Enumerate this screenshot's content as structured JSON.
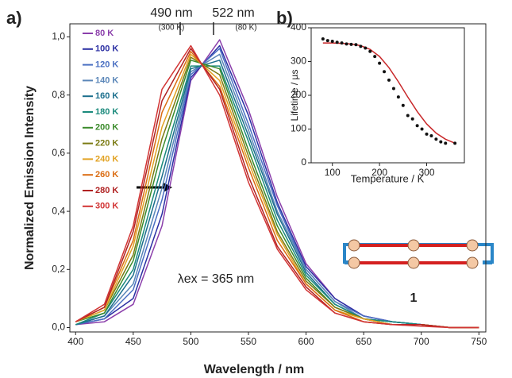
{
  "chart_data": [
    {
      "type": "line",
      "panel_label": "a)",
      "x_label": "Wavelength / nm",
      "y_label": "Normalized Emission  Intensity",
      "xlim": [
        395,
        756
      ],
      "ylim": [
        -0.015,
        1.045
      ],
      "xticks": [
        400,
        450,
        500,
        550,
        600,
        650,
        700,
        750
      ],
      "yticks": [
        {
          "value": 0,
          "label": "0,0"
        },
        {
          "value": 0.2,
          "label": "0,2"
        },
        {
          "value": 0.4,
          "label": "0,4"
        },
        {
          "value": 0.6,
          "label": "0,6"
        },
        {
          "value": 0.8,
          "label": "0,8"
        },
        {
          "value": 1.0,
          "label": "1,0"
        }
      ],
      "annotations": [
        "490 nm",
        "(300 K)",
        "522 nm",
        "(80 K)",
        "λex = 365 nm"
      ],
      "x": [
        400,
        425,
        450,
        475,
        500,
        525,
        550,
        575,
        600,
        625,
        650,
        675,
        700,
        725,
        750
      ],
      "series": [
        {
          "name": "80 K",
          "color": "#8b3fab",
          "values": [
            0.01,
            0.02,
            0.08,
            0.35,
            0.85,
            0.99,
            0.75,
            0.45,
            0.22,
            0.1,
            0.04,
            0.02,
            0.01,
            0,
            0
          ]
        },
        {
          "name": "100 K",
          "color": "#2b2fa3",
          "values": [
            0.01,
            0.03,
            0.1,
            0.39,
            0.86,
            0.97,
            0.73,
            0.43,
            0.21,
            0.1,
            0.04,
            0.02,
            0.01,
            0,
            0
          ]
        },
        {
          "name": "120 K",
          "color": "#4a6fc2",
          "values": [
            0.01,
            0.03,
            0.13,
            0.44,
            0.87,
            0.96,
            0.7,
            0.42,
            0.2,
            0.09,
            0.04,
            0.02,
            0.01,
            0,
            0
          ]
        },
        {
          "name": "140 K",
          "color": "#5a86b8",
          "values": [
            0.01,
            0.04,
            0.15,
            0.48,
            0.88,
            0.94,
            0.68,
            0.4,
            0.2,
            0.09,
            0.03,
            0.02,
            0.01,
            0,
            0
          ]
        },
        {
          "name": "160 K",
          "color": "#1a6e8c",
          "values": [
            0.01,
            0.04,
            0.18,
            0.52,
            0.89,
            0.92,
            0.66,
            0.39,
            0.19,
            0.08,
            0.03,
            0.02,
            0.01,
            0,
            0
          ]
        },
        {
          "name": "180 K",
          "color": "#1b8a7c",
          "values": [
            0.01,
            0.05,
            0.2,
            0.56,
            0.9,
            0.9,
            0.64,
            0.37,
            0.18,
            0.08,
            0.03,
            0.02,
            0.01,
            0,
            0
          ]
        },
        {
          "name": "200 K",
          "color": "#3a8a2a",
          "values": [
            0.02,
            0.05,
            0.23,
            0.61,
            0.92,
            0.89,
            0.61,
            0.35,
            0.17,
            0.07,
            0.03,
            0.01,
            0.01,
            0,
            0
          ]
        },
        {
          "name": "220 K",
          "color": "#7a7a12",
          "values": [
            0.02,
            0.06,
            0.25,
            0.65,
            0.93,
            0.87,
            0.59,
            0.33,
            0.16,
            0.07,
            0.03,
            0.01,
            0.01,
            0,
            0
          ]
        },
        {
          "name": "240 K",
          "color": "#e2a222",
          "values": [
            0.02,
            0.06,
            0.28,
            0.69,
            0.94,
            0.85,
            0.57,
            0.32,
            0.15,
            0.06,
            0.03,
            0.01,
            0.01,
            0,
            0
          ]
        },
        {
          "name": "260 K",
          "color": "#da6c12",
          "values": [
            0.02,
            0.07,
            0.3,
            0.74,
            0.95,
            0.83,
            0.55,
            0.3,
            0.15,
            0.06,
            0.02,
            0.01,
            0.01,
            0,
            0
          ]
        },
        {
          "name": "280 K",
          "color": "#b02222",
          "values": [
            0.02,
            0.07,
            0.33,
            0.78,
            0.96,
            0.82,
            0.52,
            0.28,
            0.14,
            0.05,
            0.02,
            0.01,
            0.01,
            0,
            0
          ]
        },
        {
          "name": "300 K",
          "color": "#d23434",
          "values": [
            0.02,
            0.08,
            0.35,
            0.82,
            0.97,
            0.8,
            0.5,
            0.27,
            0.13,
            0.05,
            0.02,
            0.01,
            0.005,
            0,
            0
          ]
        }
      ]
    },
    {
      "type": "scatter",
      "panel_label": "b)",
      "x_label": "Temperature / K",
      "y_label": "Lifetime / µs",
      "xlim": [
        55,
        380
      ],
      "ylim": [
        0,
        400
      ],
      "xticks": [
        100,
        200,
        300
      ],
      "yticks": [
        0,
        100,
        200,
        300,
        400
      ],
      "color": "#111111",
      "x": [
        80,
        90,
        100,
        110,
        120,
        130,
        140,
        150,
        160,
        170,
        180,
        190,
        200,
        210,
        220,
        230,
        240,
        250,
        260,
        270,
        280,
        290,
        300,
        310,
        320,
        330,
        340,
        360
      ],
      "values": [
        367,
        362,
        360,
        357,
        355,
        352,
        351,
        350,
        345,
        340,
        330,
        315,
        295,
        270,
        245,
        220,
        195,
        170,
        140,
        130,
        110,
        100,
        85,
        80,
        70,
        62,
        58,
        58
      ],
      "fit": {
        "color": "#c8282a",
        "x": [
          80,
          100,
          120,
          140,
          160,
          180,
          200,
          220,
          240,
          260,
          280,
          300,
          320,
          340,
          360
        ],
        "values": [
          355,
          355,
          354,
          352,
          347,
          336,
          315,
          282,
          240,
          195,
          152,
          115,
          88,
          70,
          58
        ]
      }
    }
  ],
  "structure_label": "1"
}
